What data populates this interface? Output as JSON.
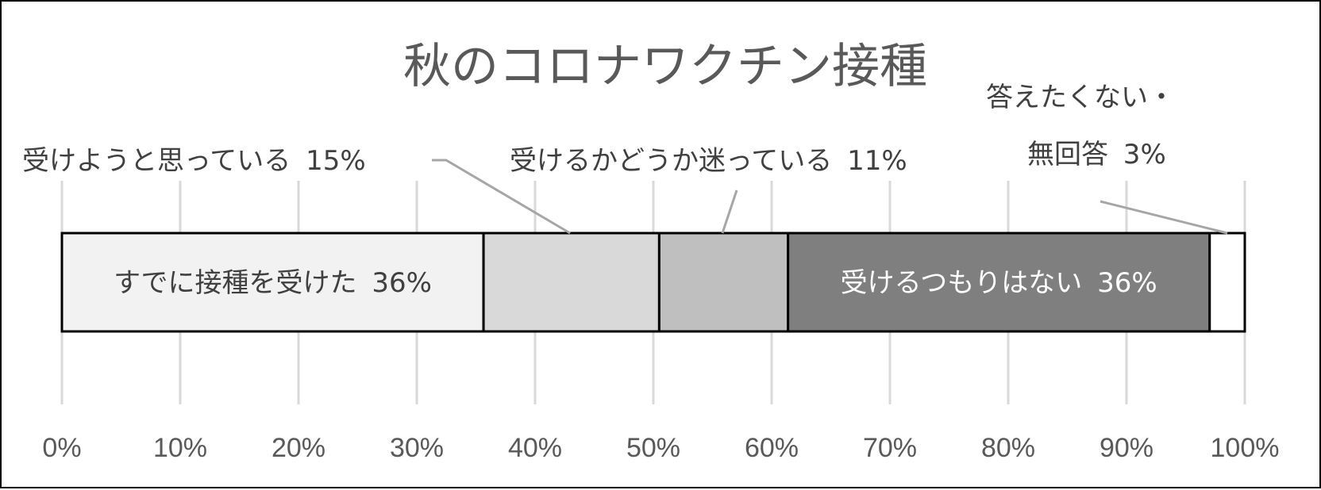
{
  "chart_data": {
    "type": "bar",
    "orientation": "horizontal",
    "stacked": true,
    "normalized": true,
    "title": "秋のコロナワクチン接種",
    "xlim": [
      0,
      100
    ],
    "xticks": [
      "0%",
      "10%",
      "20%",
      "30%",
      "40%",
      "50%",
      "60%",
      "70%",
      "80%",
      "90%",
      "100%"
    ],
    "grid": "vertical",
    "legend": "none",
    "segments": [
      {
        "label": "すでに接種を受けた",
        "value": 36,
        "value_label": "36%",
        "color": "#f2f2f2",
        "label_inside": true,
        "dark": false
      },
      {
        "label": "受けようと思っている",
        "value": 15,
        "value_label": "15%",
        "color": "#d9d9d9",
        "label_inside": false,
        "dark": false
      },
      {
        "label": "受けるかどうか迷っている",
        "value": 11,
        "value_label": "11%",
        "color": "#bfbfbf",
        "label_inside": false,
        "dark": false
      },
      {
        "label": "受けるつもりはない",
        "value": 36,
        "value_label": "36%",
        "color": "#7f7f7f",
        "label_inside": true,
        "dark": true
      },
      {
        "label": "答えたくない・無回答",
        "value": 3,
        "value_label": "3%",
        "color": "#ffffff",
        "label_inside": false,
        "dark": false,
        "label_lines": [
          "答えたくない・",
          "無回答"
        ]
      }
    ]
  }
}
